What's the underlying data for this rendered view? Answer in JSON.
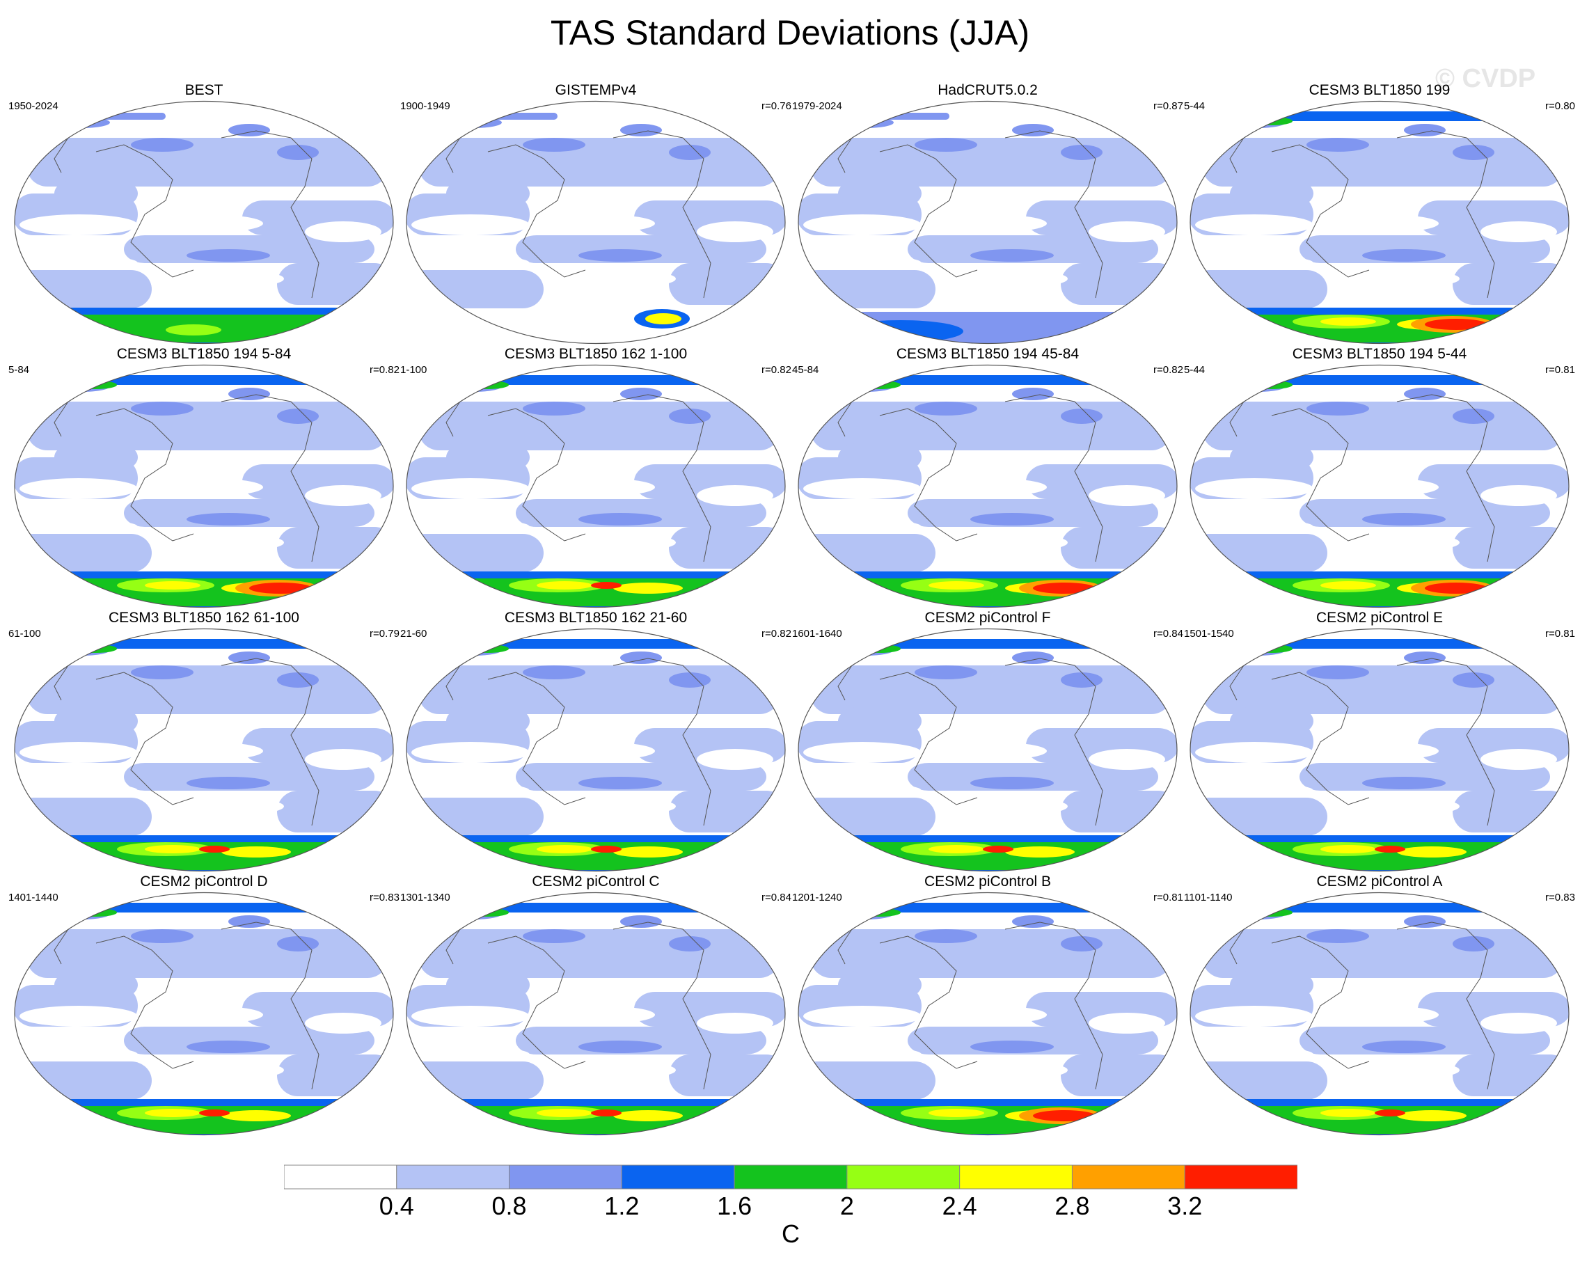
{
  "title": "TAS Standard Deviations (JJA)",
  "watermark": "© CVDP",
  "colors": {
    "white": "#ffffff",
    "light_blue": "#b4c3f5",
    "mid_blue": "#8096f0",
    "blue": "#0a64f0",
    "green": "#14c31e",
    "lime": "#96ff14",
    "yellow": "#ffff00",
    "orange": "#ffa000",
    "red": "#ff1e00"
  },
  "colorbar": {
    "colors": [
      "#ffffff",
      "#b4c3f5",
      "#8096f0",
      "#0a64f0",
      "#14c31e",
      "#96ff14",
      "#ffff00",
      "#ffa000",
      "#ff1e00"
    ],
    "labels": [
      "0.4",
      "0.8",
      "1.2",
      "1.6",
      "2",
      "2.4",
      "2.8",
      "3.2"
    ],
    "units": "C"
  },
  "panels": [
    {
      "title": "BEST",
      "years": "1950-2024",
      "r": "",
      "ant": 2
    },
    {
      "title": "GISTEMPv4",
      "years": "1900-1949",
      "r": "r=0.76",
      "ant": 0
    },
    {
      "title": "HadCRUT5.0.2",
      "years": "1979-2024",
      "r": "r=0.87",
      "ant": 1
    },
    {
      "title": "CESM3 BLT1850 199",
      "years": "5-44",
      "r": "r=0.80",
      "ant": 4
    },
    {
      "title": "CESM3 BLT1850 194 5-84",
      "years": "5-84",
      "r": "r=0.82",
      "ant": 4
    },
    {
      "title": "CESM3 BLT1850 162 1-100",
      "years": "1-100",
      "r": "r=0.82",
      "ant": 3
    },
    {
      "title": "CESM3 BLT1850 194 45-84",
      "years": "45-84",
      "r": "r=0.82",
      "ant": 4
    },
    {
      "title": "CESM3 BLT1850 194 5-44",
      "years": "5-44",
      "r": "r=0.81",
      "ant": 4
    },
    {
      "title": "CESM3 BLT1850 162 61-100",
      "years": "61-100",
      "r": "r=0.79",
      "ant": 3
    },
    {
      "title": "CESM3 BLT1850 162 21-60",
      "years": "21-60",
      "r": "r=0.82",
      "ant": 3
    },
    {
      "title": "CESM2 piControl F",
      "years": "1601-1640",
      "r": "r=0.84",
      "ant": 3
    },
    {
      "title": "CESM2 piControl E",
      "years": "1501-1540",
      "r": "r=0.81",
      "ant": 3
    },
    {
      "title": "CESM2 piControl D",
      "years": "1401-1440",
      "r": "r=0.83",
      "ant": 3
    },
    {
      "title": "CESM2 piControl C",
      "years": "1301-1340",
      "r": "r=0.84",
      "ant": 3
    },
    {
      "title": "CESM2 piControl B",
      "years": "1201-1240",
      "r": "r=0.81",
      "ant": 4
    },
    {
      "title": "CESM2 piControl A",
      "years": "1101-1140",
      "r": "r=0.83",
      "ant": 3
    }
  ]
}
